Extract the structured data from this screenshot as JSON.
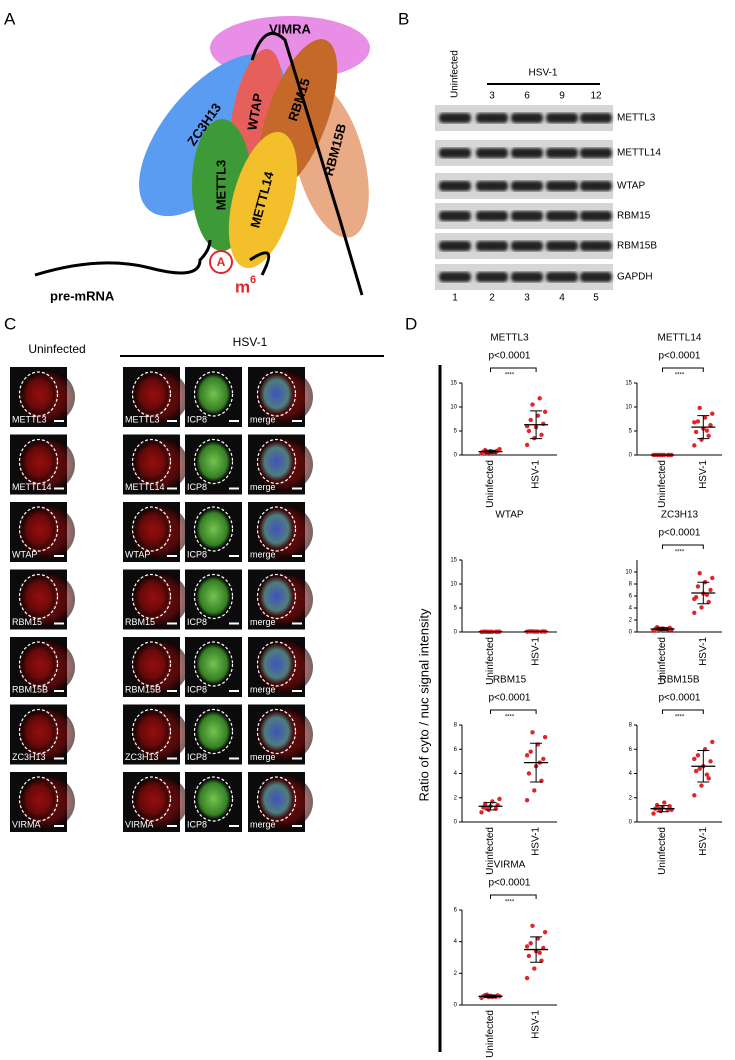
{
  "panel_a": {
    "label": "A",
    "nodes": [
      "VIMRA",
      "ZC3H13",
      "WTAP",
      "RBM15",
      "RBM15B",
      "METTL3",
      "METTL14"
    ],
    "site": "A",
    "modification": {
      "base": "m",
      "sup": "6"
    },
    "rna": "pre-mRNA"
  },
  "panel_b": {
    "label": "B",
    "control": "Uninfected",
    "group": "HSV-1",
    "timepoints": [
      "3",
      "6",
      "9",
      "12"
    ],
    "bands": [
      "METTL3",
      "METTL14",
      "WTAP",
      "RBM15",
      "RBM15B",
      "GAPDH"
    ],
    "lanes": [
      "1",
      "2",
      "3",
      "4",
      "5"
    ]
  },
  "panel_c": {
    "label": "C",
    "control": "Uninfected",
    "group": "HSV-1",
    "marker": "ICP8",
    "overlay": "merge",
    "rows": [
      "METTL3",
      "METTL14",
      "WTAP",
      "RBM15",
      "RBM15B",
      "ZC3H13",
      "VIRMA"
    ]
  },
  "panel_d": {
    "label": "D",
    "y_label": "Ratio of cyto / nuc signal intensity"
  },
  "chart_data": [
    {
      "type": "strip",
      "title": "METTL3",
      "p_value": "p<0.0001",
      "significance": "****",
      "categories": [
        "Uninfected",
        "HSV-1"
      ],
      "color": "#e0262b",
      "ylim": [
        0,
        15
      ],
      "yticks": [
        0,
        5,
        10,
        15
      ],
      "groups": [
        {
          "values": [
            0.3,
            0.5,
            0.6,
            0.7,
            0.8,
            0.9,
            1.0,
            0.6,
            1.2,
            0.4
          ],
          "mean": 0.7,
          "sd": 0.3
        },
        {
          "values": [
            2.1,
            3.5,
            4.2,
            5.0,
            5.8,
            6.5,
            7.3,
            8.2,
            9.0,
            10.5,
            11.8,
            6.0
          ],
          "mean": 6.3,
          "sd": 2.9
        }
      ]
    },
    {
      "type": "strip",
      "title": "METTL14",
      "p_value": "p<0.0001",
      "significance": "****",
      "categories": [
        "Uninfected",
        "HSV-1"
      ],
      "color": "#e0262b",
      "ylim": [
        0,
        15
      ],
      "yticks": [
        0,
        5,
        10,
        15
      ],
      "groups": [
        {
          "values": [
            0,
            0,
            0,
            0,
            0,
            0,
            0,
            0,
            0,
            0
          ],
          "mean": 0,
          "sd": 0
        },
        {
          "values": [
            2.0,
            3.2,
            4.0,
            4.8,
            5.5,
            6.2,
            7.0,
            7.8,
            8.6,
            9.8,
            5.1,
            6.8
          ],
          "mean": 5.8,
          "sd": 2.4
        }
      ]
    },
    {
      "type": "strip",
      "title": "WTAP",
      "categories": [
        "Uninfected",
        "HSV-1"
      ],
      "color": "#e0262b",
      "ylim": [
        0,
        15
      ],
      "yticks": [
        0,
        5,
        10,
        15
      ],
      "groups": [
        {
          "values": [
            0.02,
            0.04,
            0.05,
            0.06,
            0.03,
            0.05,
            0.07,
            0.04,
            0.06,
            0.05
          ],
          "mean": 0.05,
          "sd": 0.02
        },
        {
          "values": [
            0.06,
            0.08,
            0.1,
            0.12,
            0.09,
            0.11,
            0.13,
            0.1,
            0.08,
            0.12
          ],
          "mean": 0.1,
          "sd": 0.03
        }
      ]
    },
    {
      "type": "strip",
      "title": "ZC3H13",
      "p_value": "p<0.0001",
      "significance": "****",
      "categories": [
        "Uninfected",
        "HSV-1"
      ],
      "color": "#e0262b",
      "ylim": [
        0,
        12
      ],
      "yticks": [
        0,
        2,
        4,
        6,
        8,
        10
      ],
      "groups": [
        {
          "values": [
            0.2,
            0.3,
            0.4,
            0.5,
            0.6,
            0.7,
            0.8,
            0.5,
            0.4,
            0.6
          ],
          "mean": 0.5,
          "sd": 0.2
        },
        {
          "values": [
            3.2,
            4.1,
            5.0,
            5.8,
            6.4,
            7.0,
            7.6,
            8.3,
            9.0,
            9.8,
            6.2,
            5.5
          ],
          "mean": 6.5,
          "sd": 1.8
        }
      ]
    },
    {
      "type": "strip",
      "title": "RBM15",
      "p_value": "p<0.0001",
      "significance": "****",
      "categories": [
        "Uninfected",
        "HSV-1"
      ],
      "color": "#e0262b",
      "ylim": [
        0,
        8
      ],
      "yticks": [
        0,
        2,
        4,
        6,
        8
      ],
      "groups": [
        {
          "values": [
            0.8,
            1.0,
            1.1,
            1.2,
            1.3,
            1.4,
            1.5,
            1.7,
            1.9,
            1.2
          ],
          "mean": 1.3,
          "sd": 0.3
        },
        {
          "values": [
            1.8,
            2.6,
            3.4,
            4.0,
            4.6,
            5.2,
            5.8,
            6.4,
            7.0,
            7.4,
            4.9,
            5.5
          ],
          "mean": 4.9,
          "sd": 1.6
        }
      ]
    },
    {
      "type": "strip",
      "title": "RBM15B",
      "p_value": "p<0.0001",
      "significance": "****",
      "categories": [
        "Uninfected",
        "HSV-1"
      ],
      "color": "#e0262b",
      "ylim": [
        0,
        8
      ],
      "yticks": [
        0,
        2,
        4,
        6,
        8
      ],
      "groups": [
        {
          "values": [
            0.7,
            0.9,
            1.0,
            1.1,
            1.2,
            1.3,
            1.4,
            1.6,
            1.0,
            1.1
          ],
          "mean": 1.1,
          "sd": 0.25
        },
        {
          "values": [
            2.2,
            3.0,
            3.6,
            4.2,
            4.6,
            5.0,
            5.5,
            6.0,
            6.6,
            4.4,
            3.9,
            5.2
          ],
          "mean": 4.6,
          "sd": 1.3
        }
      ]
    },
    {
      "type": "strip",
      "title": "VIRMA",
      "p_value": "p<0.0001",
      "significance": "****",
      "categories": [
        "Uninfected",
        "HSV-1"
      ],
      "color": "#e0262b",
      "ylim": [
        0,
        6
      ],
      "yticks": [
        0,
        2,
        4,
        6
      ],
      "groups": [
        {
          "values": [
            0.45,
            0.5,
            0.52,
            0.55,
            0.58,
            0.6,
            0.62,
            0.5,
            0.55,
            0.65
          ],
          "mean": 0.55,
          "sd": 0.08
        },
        {
          "values": [
            1.7,
            2.3,
            2.8,
            3.1,
            3.4,
            3.6,
            3.9,
            4.2,
            4.6,
            5.0,
            3.3,
            3.7
          ],
          "mean": 3.5,
          "sd": 0.8
        }
      ]
    }
  ]
}
